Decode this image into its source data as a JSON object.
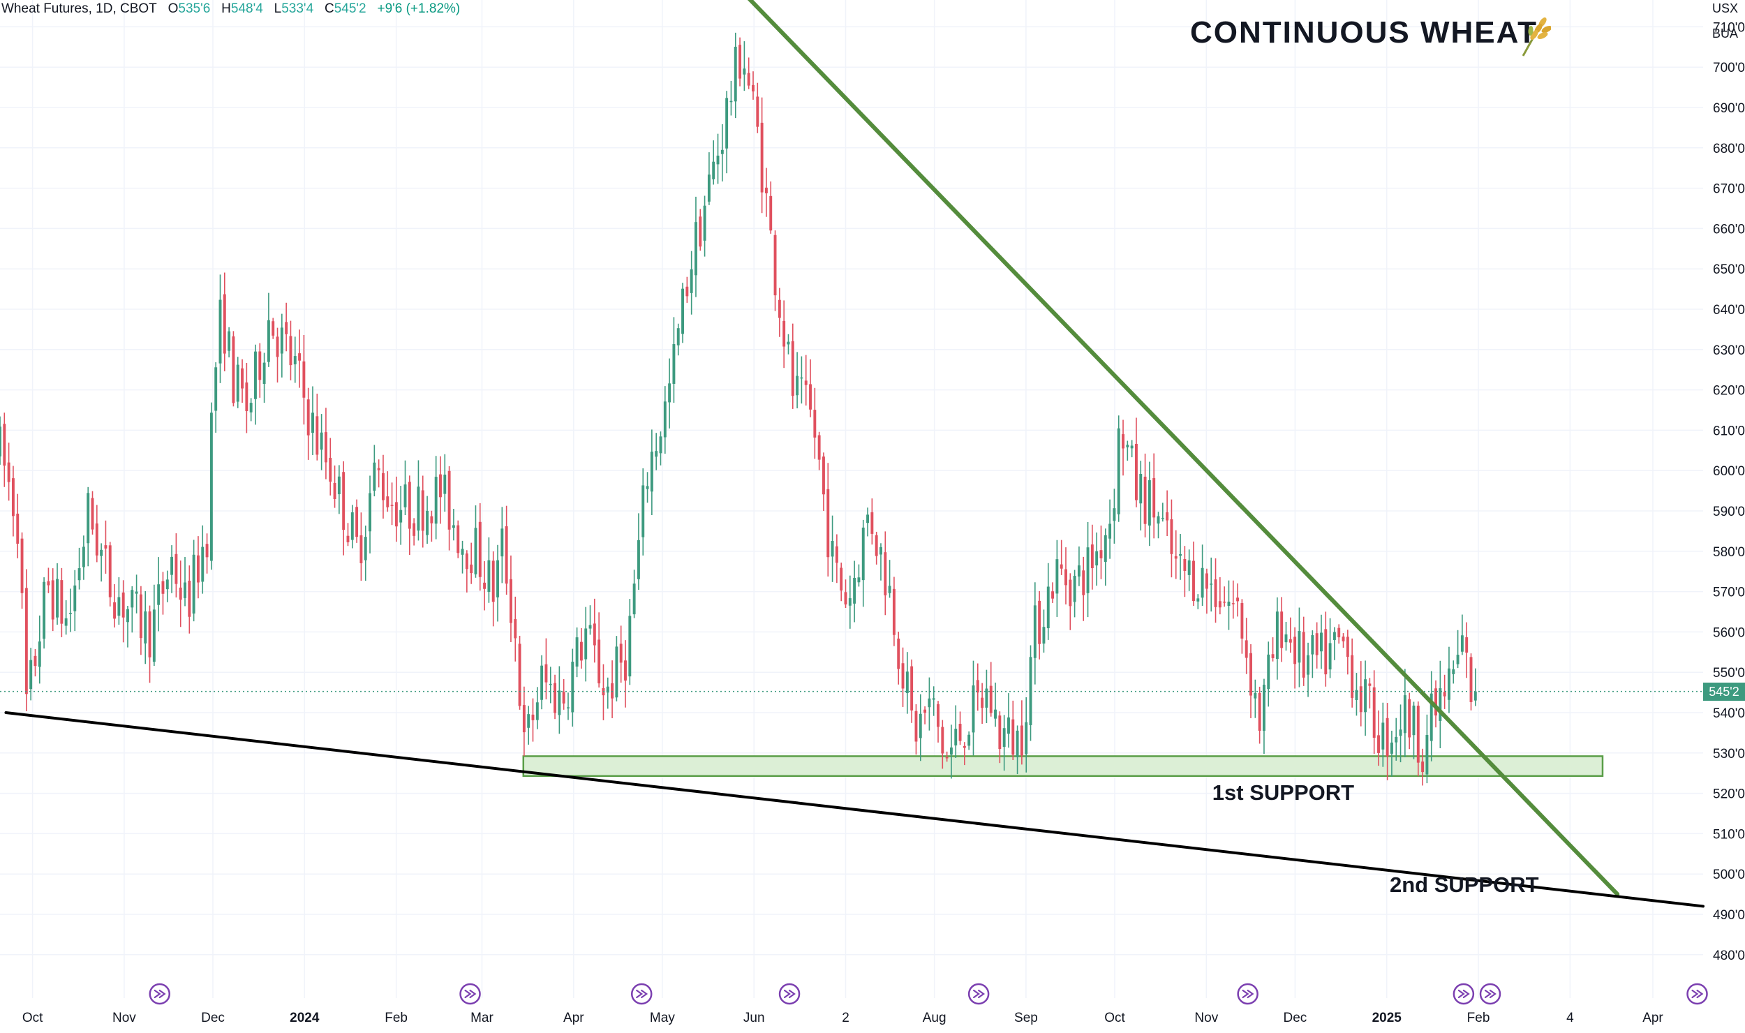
{
  "header": {
    "symbol": "Wheat Futures, 1D, CBOT",
    "open_label": "O",
    "open": "535'6",
    "high_label": "H",
    "high": "548'4",
    "low_label": "L",
    "low": "533'4",
    "close_label": "C",
    "close": "545'2",
    "change": "+9'6 (+1.82%)"
  },
  "annotations": {
    "title": "CONTINUOUS WHEAT",
    "support1": "1st SUPPORT",
    "support2": "2nd SUPPORT"
  },
  "axis": {
    "currency": "USX",
    "unit": "BUA",
    "last_price": "545'2"
  },
  "colors": {
    "up": "#3d9a7f",
    "down": "#e0505e",
    "trendline": "#548c3c",
    "support_line": "#000000",
    "zone_fill": "#dcefd6",
    "zone_stroke": "#5a9e48",
    "event_icon": "#7b3fb0"
  },
  "chart_data": {
    "type": "candlestick",
    "title": "CONTINUOUS WHEAT",
    "ylim": [
      475,
      722
    ],
    "y_ticks": [
      480,
      490,
      500,
      510,
      520,
      530,
      540,
      550,
      560,
      570,
      580,
      590,
      600,
      610,
      620,
      630,
      640,
      650,
      660,
      670,
      680,
      690,
      700,
      710
    ],
    "y_tick_labels": [
      "480'0",
      "490'0",
      "500'0",
      "510'0",
      "520'0",
      "530'0",
      "540'0",
      "550'0",
      "560'0",
      "570'0",
      "580'0",
      "590'0",
      "600'0",
      "610'0",
      "620'0",
      "630'0",
      "640'0",
      "650'0",
      "660'0",
      "670'0",
      "680'0",
      "690'0",
      "700'0",
      "710'0"
    ],
    "x_start": "2023-09-20",
    "x_end": "2025-04-18",
    "x_ticks": [
      {
        "label": "Oct",
        "date": "2023-10-01",
        "bold": false
      },
      {
        "label": "Nov",
        "date": "2023-11-01",
        "bold": false
      },
      {
        "label": "Dec",
        "date": "2023-12-01",
        "bold": false
      },
      {
        "label": "2024",
        "date": "2024-01-01",
        "bold": true
      },
      {
        "label": "Feb",
        "date": "2024-02-01",
        "bold": false
      },
      {
        "label": "Mar",
        "date": "2024-03-01",
        "bold": false
      },
      {
        "label": "Apr",
        "date": "2024-04-01",
        "bold": false
      },
      {
        "label": "May",
        "date": "2024-05-01",
        "bold": false
      },
      {
        "label": "Jun",
        "date": "2024-06-01",
        "bold": false
      },
      {
        "label": "2",
        "date": "2024-07-02",
        "bold": false
      },
      {
        "label": "Aug",
        "date": "2024-08-01",
        "bold": false
      },
      {
        "label": "Sep",
        "date": "2024-09-01",
        "bold": false
      },
      {
        "label": "Oct",
        "date": "2024-10-01",
        "bold": false
      },
      {
        "label": "Nov",
        "date": "2024-11-01",
        "bold": false
      },
      {
        "label": "Dec",
        "date": "2024-12-01",
        "bold": false
      },
      {
        "label": "2025",
        "date": "2025-01-01",
        "bold": true
      },
      {
        "label": "Feb",
        "date": "2025-02-01",
        "bold": false
      },
      {
        "label": "4",
        "date": "2025-03-04",
        "bold": false
      },
      {
        "label": "Apr",
        "date": "2025-04-01",
        "bold": false
      }
    ],
    "price_anchors": [
      [
        "2023-09-20",
        605
      ],
      [
        "2023-09-26",
        588
      ],
      [
        "2023-09-29",
        541
      ],
      [
        "2023-10-06",
        572
      ],
      [
        "2023-10-13",
        562
      ],
      [
        "2023-10-20",
        590
      ],
      [
        "2023-10-27",
        572
      ],
      [
        "2023-11-03",
        565
      ],
      [
        "2023-11-10",
        560
      ],
      [
        "2023-11-17",
        578
      ],
      [
        "2023-11-22",
        566
      ],
      [
        "2023-11-29",
        585
      ],
      [
        "2023-12-01",
        620
      ],
      [
        "2023-12-04",
        640
      ],
      [
        "2023-12-08",
        622
      ],
      [
        "2023-12-13",
        615
      ],
      [
        "2023-12-20",
        638
      ],
      [
        "2023-12-29",
        625
      ],
      [
        "2024-01-05",
        608
      ],
      [
        "2024-01-10",
        600
      ],
      [
        "2024-01-19",
        580
      ],
      [
        "2024-01-25",
        600
      ],
      [
        "2024-01-31",
        592
      ],
      [
        "2024-02-07",
        590
      ],
      [
        "2024-02-16",
        595
      ],
      [
        "2024-02-23",
        583
      ],
      [
        "2024-02-28",
        580
      ],
      [
        "2024-03-05",
        570
      ],
      [
        "2024-03-08",
        582
      ],
      [
        "2024-03-13",
        555
      ],
      [
        "2024-03-15",
        530
      ],
      [
        "2024-03-21",
        548
      ],
      [
        "2024-03-28",
        543
      ],
      [
        "2024-04-05",
        560
      ],
      [
        "2024-04-12",
        545
      ],
      [
        "2024-04-19",
        555
      ],
      [
        "2024-04-26",
        600
      ],
      [
        "2024-05-03",
        618
      ],
      [
        "2024-05-10",
        650
      ],
      [
        "2024-05-15",
        665
      ],
      [
        "2024-05-20",
        680
      ],
      [
        "2024-05-23",
        690
      ],
      [
        "2024-05-28",
        705
      ],
      [
        "2024-06-03",
        680
      ],
      [
        "2024-06-07",
        655
      ],
      [
        "2024-06-14",
        620
      ],
      [
        "2024-06-21",
        612
      ],
      [
        "2024-06-28",
        575
      ],
      [
        "2024-07-03",
        568
      ],
      [
        "2024-07-10",
        590
      ],
      [
        "2024-07-17",
        570
      ],
      [
        "2024-07-22",
        548
      ],
      [
        "2024-07-25",
        535
      ],
      [
        "2024-07-31",
        542
      ],
      [
        "2024-08-05",
        528
      ],
      [
        "2024-08-12",
        538
      ],
      [
        "2024-08-19",
        545
      ],
      [
        "2024-08-23",
        535
      ],
      [
        "2024-08-30",
        533
      ],
      [
        "2024-09-04",
        560
      ],
      [
        "2024-09-11",
        575
      ],
      [
        "2024-09-18",
        572
      ],
      [
        "2024-09-25",
        580
      ],
      [
        "2024-09-30",
        590
      ],
      [
        "2024-10-03",
        612
      ],
      [
        "2024-10-08",
        596
      ],
      [
        "2024-10-15",
        590
      ],
      [
        "2024-10-22",
        575
      ],
      [
        "2024-10-29",
        574
      ],
      [
        "2024-11-05",
        570
      ],
      [
        "2024-11-12",
        565
      ],
      [
        "2024-11-19",
        538
      ],
      [
        "2024-11-26",
        563
      ],
      [
        "2024-12-04",
        552
      ],
      [
        "2024-12-10",
        553
      ],
      [
        "2024-12-17",
        557
      ],
      [
        "2024-12-23",
        545
      ],
      [
        "2024-12-31",
        533
      ],
      [
        "2025-01-07",
        540
      ],
      [
        "2025-01-13",
        532
      ],
      [
        "2025-01-17",
        540
      ],
      [
        "2025-01-23",
        548
      ],
      [
        "2025-01-27",
        558
      ],
      [
        "2025-01-29",
        545
      ],
      [
        "2025-01-31",
        545.25
      ]
    ],
    "candle_count": 336,
    "trendlines": [
      {
        "name": "resistance",
        "from": [
          "2024-05-29",
          718
        ],
        "to": [
          "2025-03-20",
          495
        ],
        "color": "#548c3c"
      },
      {
        "name": "support",
        "from": [
          "2023-09-22",
          540
        ],
        "to": [
          "2025-04-18",
          492
        ],
        "color": "#000000"
      }
    ],
    "zones": [
      {
        "name": "1st SUPPORT",
        "from": "2024-03-15",
        "to": "2025-03-15",
        "low": 524.3,
        "high": 529.2
      }
    ],
    "last_price": 545.25,
    "event_dates": [
      "2023-11-13",
      "2024-02-26",
      "2024-04-24",
      "2024-06-13",
      "2024-08-16",
      "2024-11-15",
      "2025-01-27",
      "2025-02-05",
      "2025-04-16"
    ],
    "grid": true
  }
}
